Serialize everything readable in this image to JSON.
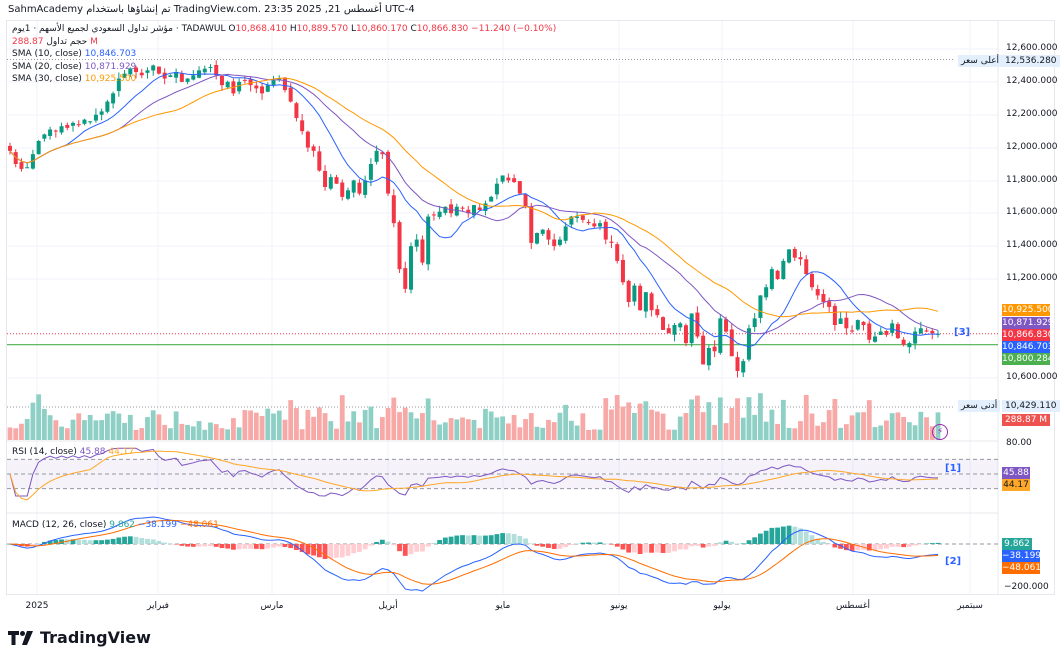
{
  "header": {
    "caption": "SahmAcademy تم إنشاؤها باستخدام TradingView.com. 23:35 2025 ,21 أغسطس UTC-4"
  },
  "symbol": {
    "name": "مؤشر تداول السعودي لجميع الأسهم · 1يوم · TADAWUL",
    "open_label": "O",
    "open": "10,868.410",
    "high_label": "H",
    "high": "10,889.570",
    "low_label": "L",
    "low": "10,860.170",
    "close_label": "C",
    "close": "10,866.830",
    "change": "−11.240 (−0.10%)"
  },
  "volume_legend": {
    "label": "حجم تداول",
    "value": "288.87 M"
  },
  "sma_legend": [
    {
      "label": "SMA (10, close)",
      "value": "10,846.703",
      "color": "#2962ff"
    },
    {
      "label": "SMA (20, close)",
      "value": "10,871.929",
      "color": "#7e57c2"
    },
    {
      "label": "SMA (30, close)",
      "value": "10,925.500",
      "color": "#ff9800"
    }
  ],
  "rsi_legend": {
    "label": "RSI (14, close)",
    "value": "45.88",
    "signal": "44.17"
  },
  "macd_legend": {
    "label": "MACD (12, 26, close)",
    "hist": "9.862",
    "macd": "−38.199",
    "signal": "−48.061"
  },
  "price_axis": {
    "ticks": [
      "12,600.000",
      "12,400.000",
      "12,200.000",
      "12,000.000",
      "11,800.000",
      "11,600.000",
      "11,400.000",
      "11,200.000",
      "10,600.000"
    ],
    "high_label": "أعلى سعر",
    "high_value": "12,536.280",
    "low_label": "أدنى سعر",
    "low_value": "10,429.110",
    "tags": [
      {
        "value": "10,925.500",
        "color": "#ff9800"
      },
      {
        "value": "10,871.929",
        "color": "#7e57c2"
      },
      {
        "value": "10,866.830",
        "color": "#f23645"
      },
      {
        "value": "10,846.703",
        "color": "#2962ff"
      },
      {
        "value": "10,800.284",
        "color": "#4caf50"
      }
    ],
    "volume_tag": "288.87 M"
  },
  "rsi_axis": {
    "top_tick": "80.00",
    "tags": [
      {
        "value": "45.88",
        "color": "#7e57c2"
      },
      {
        "value": "44.17",
        "color": "#ffa726"
      }
    ]
  },
  "macd_axis": {
    "bottom_tick": "−200.000",
    "tags": [
      {
        "value": "9.862",
        "color": "#26a69a"
      },
      {
        "value": "−38.199",
        "color": "#2962ff"
      },
      {
        "value": "−48.061",
        "color": "#ff6d00"
      }
    ]
  },
  "markers": {
    "price": "[3]",
    "rsi": "[1]",
    "macd": "[2]"
  },
  "x_axis": [
    "2025",
    "فبراير",
    "مارس",
    "أبريل",
    "مايو",
    "يونيو",
    "يوليو",
    "أغسطس",
    "سبتمبر"
  ],
  "brand": "TradingView",
  "colors": {
    "up": "#089981",
    "down": "#f23645",
    "vol_up": "#8fd0c6",
    "vol_down": "#f7a9a7",
    "support": "#4caf50"
  },
  "chart_data": {
    "type": "candlestick",
    "title": "مؤشر تداول السعودي لجميع الأسهم · 1يوم · TADAWUL",
    "xlabel": "",
    "ylabel": "",
    "ylim": [
      10300,
      12700
    ],
    "support_line": 10800.284,
    "period_high": 12536.28,
    "period_low": 10429.11,
    "close_path": [
      11980,
      11900,
      11870,
      11880,
      11960,
      12040,
      12080,
      12110,
      12100,
      12130,
      12120,
      12150,
      12140,
      12170,
      12160,
      12200,
      12220,
      12280,
      12330,
      12420,
      12450,
      12480,
      12460,
      12440,
      12470,
      12500,
      12450,
      12420,
      12440,
      12460,
      12400,
      12420,
      12440,
      12470,
      12480,
      12490,
      12440,
      12380,
      12400,
      12330,
      12400,
      12410,
      12380,
      12360,
      12330,
      12380,
      12410,
      12420,
      12350,
      12280,
      12180,
      12100,
      12000,
      11980,
      11860,
      11760,
      11820,
      11780,
      11700,
      11740,
      11800,
      11720,
      11800,
      11900,
      11980,
      11960,
      11720,
      11540,
      11260,
      11140,
      11400,
      11440,
      11300,
      11580,
      11590,
      11610,
      11640,
      11600,
      11640,
      11630,
      11600,
      11650,
      11620,
      11660,
      11700,
      11780,
      11830,
      11800,
      11790,
      11720,
      11640,
      11420,
      11480,
      11500,
      11440,
      11400,
      11440,
      11520,
      11580,
      11580,
      11560,
      11540,
      11520,
      11540,
      11440,
      11420,
      11310,
      11180,
      11060,
      11160,
      11010,
      11120,
      11010,
      10980,
      10890,
      10870,
      10920,
      10930,
      10810,
      10990,
      10850,
      10680,
      10780,
      10760,
      10960,
      10880,
      10730,
      10640,
      10700,
      10900,
      10960,
      11100,
      11150,
      11260,
      11200,
      11310,
      11380,
      11330,
      11320,
      11230,
      11150,
      11100,
      11060,
      11030,
      10920,
      10960,
      10900,
      10880,
      10950,
      10920,
      10830,
      10850,
      10880,
      10860,
      10930,
      10840,
      10800,
      10810,
      10880,
      10900,
      10880,
      10870,
      10866.83
    ]
  }
}
